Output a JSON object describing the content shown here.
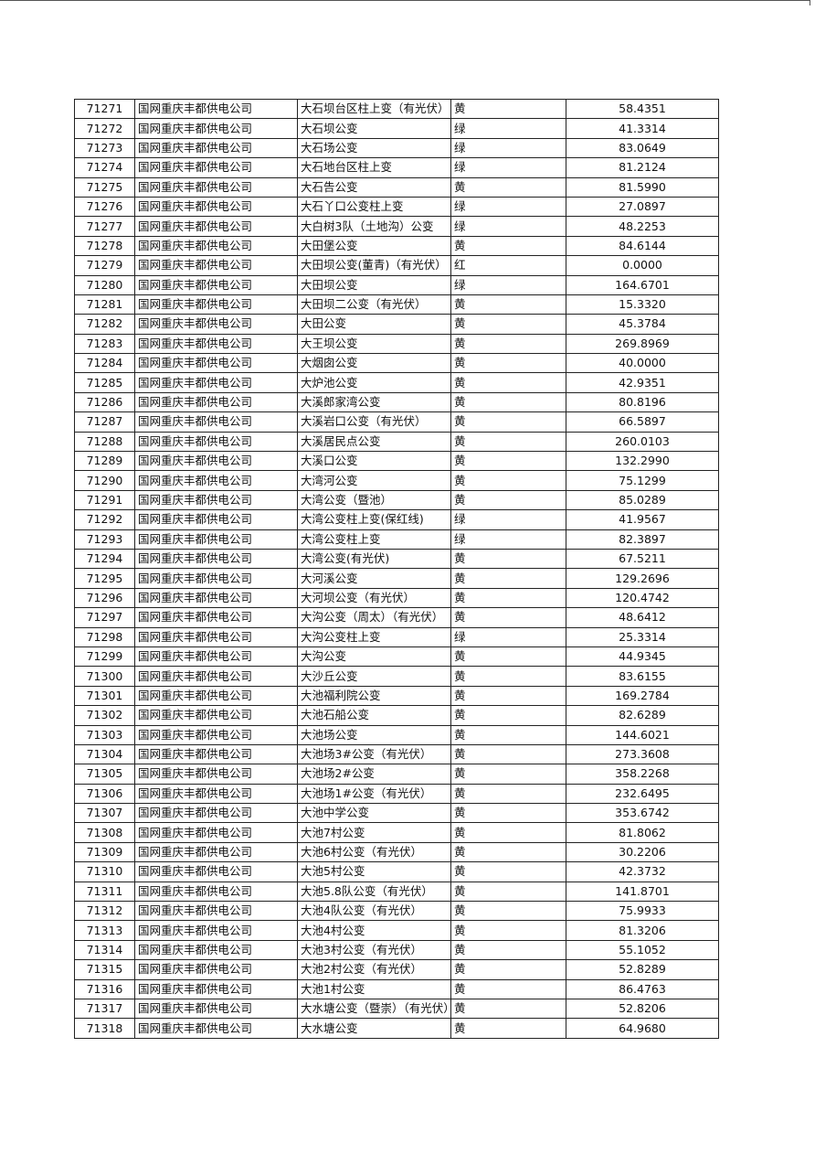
{
  "table": {
    "rows": [
      [
        "71271",
        "国网重庆丰都供电公司",
        "大石坝台区柱上变（有光伏）",
        "黄",
        "58.4351"
      ],
      [
        "71272",
        "国网重庆丰都供电公司",
        "大石坝公变",
        "绿",
        "41.3314"
      ],
      [
        "71273",
        "国网重庆丰都供电公司",
        "大石场公变",
        "绿",
        "83.0649"
      ],
      [
        "71274",
        "国网重庆丰都供电公司",
        "大石地台区柱上变",
        "绿",
        "81.2124"
      ],
      [
        "71275",
        "国网重庆丰都供电公司",
        "大石告公变",
        "黄",
        "81.5990"
      ],
      [
        "71276",
        "国网重庆丰都供电公司",
        "大石丫口公变柱上变",
        "绿",
        "27.0897"
      ],
      [
        "71277",
        "国网重庆丰都供电公司",
        "大白树3队（土地沟）公变",
        "绿",
        "48.2253"
      ],
      [
        "71278",
        "国网重庆丰都供电公司",
        "大田堡公变",
        "黄",
        "84.6144"
      ],
      [
        "71279",
        "国网重庆丰都供电公司",
        "大田坝公变(董青)（有光伏）",
        "红",
        "0.0000"
      ],
      [
        "71280",
        "国网重庆丰都供电公司",
        "大田坝公变",
        "绿",
        "164.6701"
      ],
      [
        "71281",
        "国网重庆丰都供电公司",
        "大田坝二公变（有光伏）",
        "黄",
        "15.3320"
      ],
      [
        "71282",
        "国网重庆丰都供电公司",
        "大田公变",
        "黄",
        "45.3784"
      ],
      [
        "71283",
        "国网重庆丰都供电公司",
        "大王坝公变",
        "黄",
        "269.8969"
      ],
      [
        "71284",
        "国网重庆丰都供电公司",
        "大烟囱公变",
        "黄",
        "40.0000"
      ],
      [
        "71285",
        "国网重庆丰都供电公司",
        "大炉池公变",
        "黄",
        "42.9351"
      ],
      [
        "71286",
        "国网重庆丰都供电公司",
        "大溪郎家湾公变",
        "黄",
        "80.8196"
      ],
      [
        "71287",
        "国网重庆丰都供电公司",
        "大溪岩口公变（有光伏）",
        "黄",
        "66.5897"
      ],
      [
        "71288",
        "国网重庆丰都供电公司",
        "大溪居民点公变",
        "黄",
        "260.0103"
      ],
      [
        "71289",
        "国网重庆丰都供电公司",
        "大溪口公变",
        "黄",
        "132.2990"
      ],
      [
        "71290",
        "国网重庆丰都供电公司",
        "大湾河公变",
        "黄",
        "75.1299"
      ],
      [
        "71291",
        "国网重庆丰都供电公司",
        "大湾公变（暨池）",
        "黄",
        "85.0289"
      ],
      [
        "71292",
        "国网重庆丰都供电公司",
        "大湾公变柱上变(保红线)",
        "绿",
        "41.9567"
      ],
      [
        "71293",
        "国网重庆丰都供电公司",
        "大湾公变柱上变",
        "绿",
        "82.3897"
      ],
      [
        "71294",
        "国网重庆丰都供电公司",
        "大湾公变(有光伏)",
        "黄",
        "67.5211"
      ],
      [
        "71295",
        "国网重庆丰都供电公司",
        "大河溪公变",
        "黄",
        "129.2696"
      ],
      [
        "71296",
        "国网重庆丰都供电公司",
        "大河坝公变（有光伏）",
        "黄",
        "120.4742"
      ],
      [
        "71297",
        "国网重庆丰都供电公司",
        "大沟公变（周太）（有光伏）",
        "黄",
        "48.6412"
      ],
      [
        "71298",
        "国网重庆丰都供电公司",
        "大沟公变柱上变",
        "绿",
        "25.3314"
      ],
      [
        "71299",
        "国网重庆丰都供电公司",
        "大沟公变",
        "黄",
        "44.9345"
      ],
      [
        "71300",
        "国网重庆丰都供电公司",
        "大沙丘公变",
        "黄",
        "83.6155"
      ],
      [
        "71301",
        "国网重庆丰都供电公司",
        "大池福利院公变",
        "黄",
        "169.2784"
      ],
      [
        "71302",
        "国网重庆丰都供电公司",
        "大池石船公变",
        "黄",
        "82.6289"
      ],
      [
        "71303",
        "国网重庆丰都供电公司",
        "大池场公变",
        "黄",
        "144.6021"
      ],
      [
        "71304",
        "国网重庆丰都供电公司",
        "大池场3#公变（有光伏）",
        "黄",
        "273.3608"
      ],
      [
        "71305",
        "国网重庆丰都供电公司",
        "大池场2#公变",
        "黄",
        "358.2268"
      ],
      [
        "71306",
        "国网重庆丰都供电公司",
        "大池场1#公变（有光伏）",
        "黄",
        "232.6495"
      ],
      [
        "71307",
        "国网重庆丰都供电公司",
        "大池中学公变",
        "黄",
        "353.6742"
      ],
      [
        "71308",
        "国网重庆丰都供电公司",
        "大池7村公变",
        "黄",
        "81.8062"
      ],
      [
        "71309",
        "国网重庆丰都供电公司",
        "大池6村公变（有光伏）",
        "黄",
        "30.2206"
      ],
      [
        "71310",
        "国网重庆丰都供电公司",
        "大池5村公变",
        "黄",
        "42.3732"
      ],
      [
        "71311",
        "国网重庆丰都供电公司",
        "大池5.8队公变（有光伏）",
        "黄",
        "141.8701"
      ],
      [
        "71312",
        "国网重庆丰都供电公司",
        "大池4队公变（有光伏）",
        "黄",
        "75.9933"
      ],
      [
        "71313",
        "国网重庆丰都供电公司",
        "大池4村公变",
        "黄",
        "81.3206"
      ],
      [
        "71314",
        "国网重庆丰都供电公司",
        "大池3村公变（有光伏）",
        "黄",
        "55.1052"
      ],
      [
        "71315",
        "国网重庆丰都供电公司",
        "大池2村公变（有光伏）",
        "黄",
        "52.8289"
      ],
      [
        "71316",
        "国网重庆丰都供电公司",
        "大池1村公变",
        "黄",
        "86.4763"
      ],
      [
        "71317",
        "国网重庆丰都供电公司",
        "大水塘公变（暨崇）（有光伏）",
        "黄",
        "52.8206"
      ],
      [
        "71318",
        "国网重庆丰都供电公司",
        "大水塘公变",
        "黄",
        "64.9680"
      ]
    ]
  }
}
